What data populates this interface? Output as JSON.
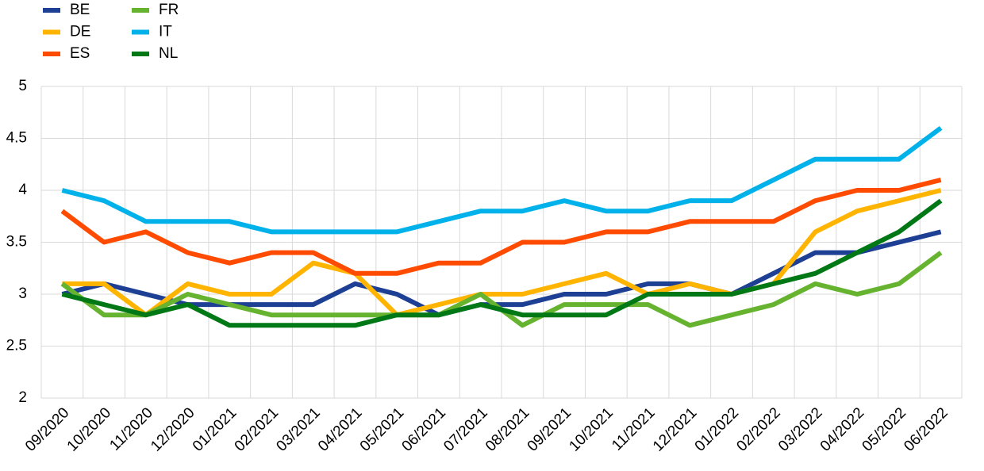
{
  "chart_data": {
    "type": "line",
    "categories": [
      "09/2020",
      "10/2020",
      "11/2020",
      "12/2020",
      "01/2021",
      "02/2021",
      "03/2021",
      "04/2021",
      "05/2021",
      "06/2021",
      "07/2021",
      "08/2021",
      "09/2021",
      "10/2021",
      "11/2021",
      "12/2021",
      "01/2022",
      "02/2022",
      "03/2022",
      "04/2022",
      "05/2022",
      "06/2022"
    ],
    "series": [
      {
        "name": "BE",
        "color": "#1d3f94",
        "values": [
          3.0,
          3.1,
          3.0,
          2.9,
          2.9,
          2.9,
          2.9,
          3.1,
          3.0,
          2.8,
          2.9,
          2.9,
          3.0,
          3.0,
          3.1,
          3.1,
          3.0,
          3.2,
          3.4,
          3.4,
          3.5,
          3.6
        ]
      },
      {
        "name": "DE",
        "color": "#ffb400",
        "values": [
          3.1,
          3.1,
          2.8,
          3.1,
          3.0,
          3.0,
          3.3,
          3.2,
          2.8,
          2.9,
          3.0,
          3.0,
          3.1,
          3.2,
          3.0,
          3.1,
          3.0,
          3.1,
          3.6,
          3.8,
          3.9,
          4.0
        ]
      },
      {
        "name": "ES",
        "color": "#ff4b00",
        "values": [
          3.8,
          3.5,
          3.6,
          3.4,
          3.3,
          3.4,
          3.4,
          3.2,
          3.2,
          3.3,
          3.3,
          3.5,
          3.5,
          3.6,
          3.6,
          3.7,
          3.7,
          3.7,
          3.9,
          4.0,
          4.0,
          4.1
        ]
      },
      {
        "name": "FR",
        "color": "#65b32e",
        "values": [
          3.1,
          2.8,
          2.8,
          3.0,
          2.9,
          2.8,
          2.8,
          2.8,
          2.8,
          2.8,
          3.0,
          2.7,
          2.9,
          2.9,
          2.9,
          2.7,
          2.8,
          2.9,
          3.1,
          3.0,
          3.1,
          3.4
        ]
      },
      {
        "name": "IT",
        "color": "#00b1ea",
        "values": [
          4.0,
          3.9,
          3.7,
          3.7,
          3.7,
          3.6,
          3.6,
          3.6,
          3.6,
          3.7,
          3.8,
          3.8,
          3.9,
          3.8,
          3.8,
          3.9,
          3.9,
          4.1,
          4.3,
          4.3,
          4.3,
          4.6
        ]
      },
      {
        "name": "NL",
        "color": "#007816",
        "values": [
          3.0,
          2.9,
          2.8,
          2.9,
          2.7,
          2.7,
          2.7,
          2.7,
          2.8,
          2.8,
          2.9,
          2.8,
          2.8,
          2.8,
          3.0,
          3.0,
          3.0,
          3.1,
          3.2,
          3.4,
          3.6,
          3.9
        ]
      }
    ],
    "ylim": [
      2,
      5
    ],
    "yticks": [
      2,
      2.5,
      3,
      3.5,
      4,
      4.5,
      5
    ],
    "grid": true,
    "legend": "top-left"
  }
}
